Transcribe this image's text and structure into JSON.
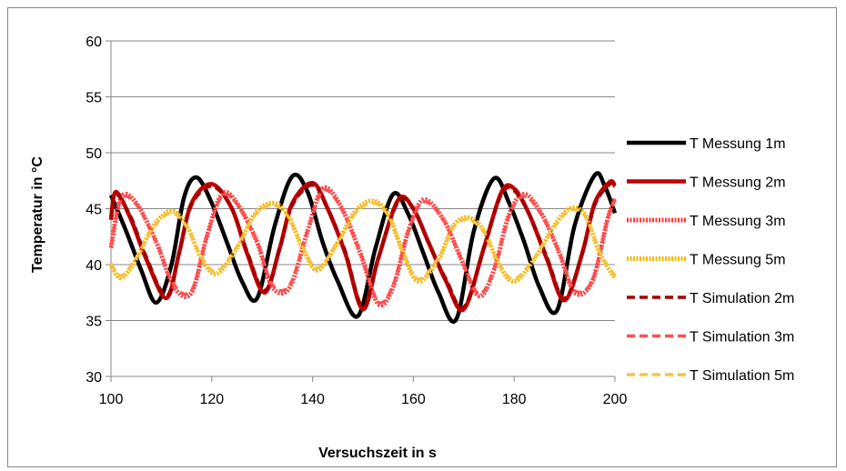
{
  "chart_data": {
    "type": "line",
    "title": "",
    "xlabel": "Versuchszeit in s",
    "ylabel": "Temperatur in °C",
    "xlim": [
      100,
      200
    ],
    "ylim": [
      30,
      60
    ],
    "x_ticks": [
      100,
      120,
      140,
      160,
      180,
      200
    ],
    "y_ticks": [
      30,
      35,
      40,
      45,
      50,
      55,
      60
    ],
    "grid": "horizontal",
    "legend_position": "right",
    "series": [
      {
        "name": "T Messung 1m",
        "color": "#000000",
        "style": "solid",
        "x": [
          100,
          103,
          106,
          109,
          112,
          114.5,
          117,
          120,
          123,
          126,
          129,
          132.5,
          136,
          139,
          142,
          145,
          149,
          152.5,
          156,
          159,
          162,
          165,
          168.5,
          172,
          176,
          179,
          182,
          185,
          188.5,
          192,
          196,
          198,
          200
        ],
        "y": [
          46.2,
          43,
          39.5,
          36.6,
          40,
          46,
          47.8,
          45.5,
          42,
          38.5,
          37,
          43.5,
          47.9,
          46.5,
          42,
          38.5,
          35.4,
          41.5,
          46.3,
          44.5,
          41,
          37.5,
          35.1,
          43,
          47.7,
          45.5,
          42,
          38,
          35.9,
          43.5,
          48,
          47,
          44.6
        ]
      },
      {
        "name": "T Messung 2m",
        "color": "#C00000",
        "style": "solid",
        "x": [
          100,
          101,
          104,
          107,
          111,
          113.5,
          116,
          120,
          124,
          127,
          130.5,
          133.5,
          136,
          140,
          143,
          146.5,
          150,
          153,
          157,
          160,
          163,
          166.5,
          170,
          174,
          177.5,
          180,
          183,
          186.5,
          190,
          193.5,
          196,
          199,
          200
        ],
        "y": [
          44,
          46.5,
          44,
          40.5,
          37,
          41,
          45.5,
          47.2,
          45,
          41,
          37.5,
          41.5,
          45.5,
          47.3,
          45,
          41,
          36,
          40.5,
          45.8,
          45,
          42,
          38.5,
          36,
          41.5,
          46.5,
          46.8,
          44.5,
          40.5,
          36.8,
          41,
          45.5,
          47.4,
          47
        ]
      },
      {
        "name": "T Messung 3m",
        "color": "#FF3B3B",
        "style": "dotted",
        "x": [
          100,
          102,
          105,
          109,
          112.5,
          116,
          119,
          122,
          125,
          129,
          132,
          135.5,
          139,
          142,
          145.5,
          149.5,
          153,
          156,
          159,
          162,
          166,
          169.5,
          173,
          176,
          179,
          182,
          185.5,
          189,
          192,
          195.5,
          198.5,
          200
        ],
        "y": [
          41.5,
          46,
          45.5,
          42,
          38,
          37.5,
          42.5,
          46.3,
          45.5,
          42,
          38,
          38,
          43,
          46.8,
          45.3,
          41,
          36.5,
          38,
          43,
          45.8,
          44,
          40.5,
          37.2,
          39.5,
          44.5,
          46.3,
          44.5,
          41,
          37.5,
          38.5,
          44,
          46
        ]
      },
      {
        "name": "T Messung 5m",
        "color": "#F7B500",
        "style": "dotted",
        "x": [
          100,
          102,
          105,
          108.5,
          112,
          115,
          118,
          121,
          125,
          128.5,
          132,
          135,
          138,
          141,
          145,
          148.5,
          152,
          155,
          158,
          161,
          165,
          168,
          171,
          174,
          177,
          180,
          184,
          188,
          191,
          194,
          197,
          200
        ],
        "y": [
          40,
          38.8,
          40.5,
          43.5,
          44.8,
          43.5,
          40.5,
          39.2,
          41.5,
          44.5,
          45.5,
          44.5,
          41.5,
          39.5,
          42,
          44.8,
          45.7,
          44.5,
          41,
          38.5,
          40.5,
          43.5,
          44.2,
          43,
          40,
          38.5,
          40.5,
          43.5,
          45,
          44.5,
          41,
          38.8
        ]
      },
      {
        "name": "T Simulation 2m",
        "color": "#A00000",
        "style": "dashed",
        "x": [
          100,
          101,
          104,
          107,
          111,
          113.5,
          116,
          120,
          124,
          127,
          130.5,
          133.5,
          136,
          140,
          143,
          146.5,
          150,
          153,
          157,
          160,
          163,
          166.5,
          170,
          174,
          177.5,
          180,
          183,
          186.5,
          190,
          193.5,
          196,
          199,
          200
        ],
        "y": [
          44.2,
          46.3,
          44.2,
          40.7,
          37.2,
          41,
          45.3,
          47,
          45,
          41.2,
          37.7,
          41.5,
          45.3,
          47.1,
          45,
          41.2,
          36.2,
          40.5,
          45.6,
          45,
          42,
          38.7,
          36.2,
          41.5,
          46.3,
          46.6,
          44.5,
          40.7,
          37,
          41,
          45.3,
          47.2,
          46.9
        ]
      },
      {
        "name": "T Simulation 3m",
        "color": "#FF5050",
        "style": "dashed",
        "x": [
          100,
          102,
          105,
          109,
          112.5,
          116,
          119,
          122,
          125,
          129,
          132,
          135.5,
          139,
          142,
          145.5,
          149.5,
          153,
          156,
          159,
          162,
          166,
          169.5,
          173,
          176,
          179,
          182,
          185.5,
          189,
          192,
          195.5,
          198.5,
          200
        ],
        "y": [
          41.7,
          45.8,
          45.4,
          42,
          38.2,
          37.7,
          42.5,
          46.1,
          45.4,
          42,
          38.2,
          38.2,
          43,
          46.6,
          45.2,
          41,
          36.7,
          38.2,
          43,
          45.6,
          44,
          40.5,
          37.4,
          39.6,
          44.4,
          46.1,
          44.4,
          41,
          37.7,
          38.6,
          44,
          45.8
        ]
      },
      {
        "name": "T Simulation 5m",
        "color": "#F5C342",
        "style": "dashed",
        "x": [
          100,
          102,
          105,
          108.5,
          112,
          115,
          118,
          121,
          125,
          128.5,
          132,
          135,
          138,
          141,
          145,
          148.5,
          152,
          155,
          158,
          161,
          165,
          168,
          171,
          174,
          177,
          180,
          184,
          188,
          191,
          194,
          197,
          200
        ],
        "y": [
          40.1,
          39,
          40.6,
          43.4,
          44.6,
          43.4,
          40.6,
          39.4,
          41.6,
          44.4,
          45.3,
          44.4,
          41.6,
          39.7,
          42,
          44.6,
          45.5,
          44.4,
          41.1,
          38.7,
          40.6,
          43.4,
          44,
          42.9,
          40.1,
          38.7,
          40.6,
          43.4,
          44.8,
          44.4,
          41.1,
          39
        ]
      }
    ]
  }
}
